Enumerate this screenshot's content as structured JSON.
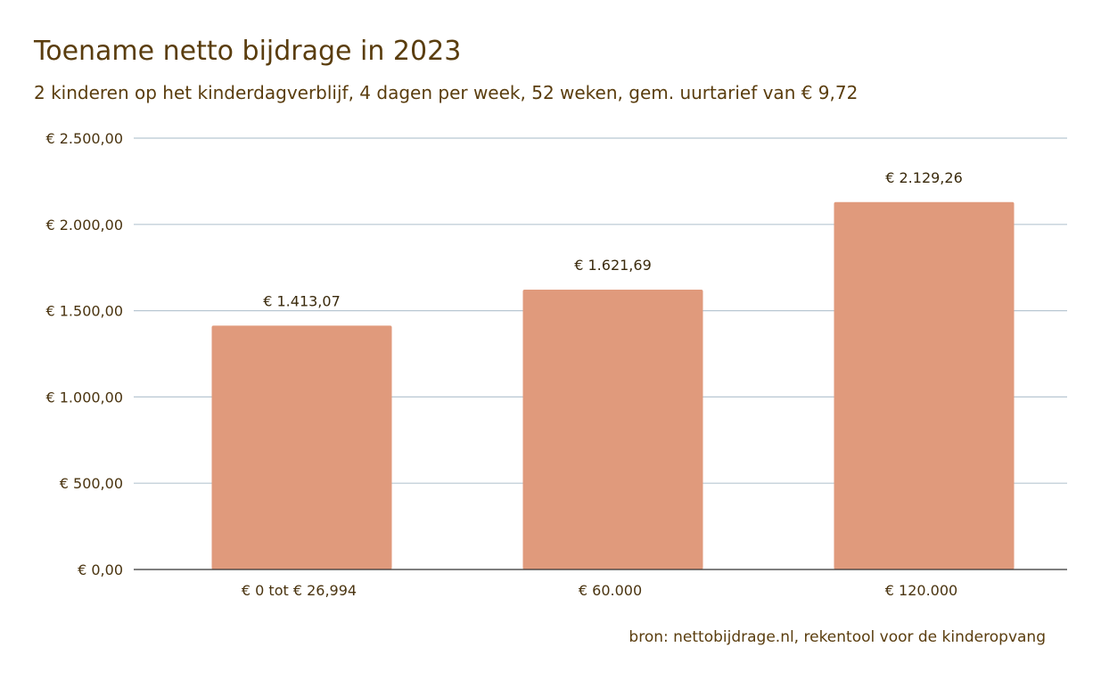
{
  "header": {
    "title": "Toename netto bijdrage in 2023",
    "subtitle": "2 kinderen op het kinderdagverblijf, 4 dagen per week, 52 weken, gem. uurtarief van € 9,72"
  },
  "footer": {
    "source": "bron: nettobijdrage.nl, rekentool voor de kinderopvang"
  },
  "colors": {
    "bar": "#e09a7c",
    "grid": "#b8c7d2",
    "axis": "#333333",
    "text": "#5a3d0e"
  },
  "chart_data": {
    "type": "bar",
    "title": "Toename netto bijdrage in 2023",
    "subtitle": "2 kinderen op het kinderdagverblijf, 4 dagen per week, 52 weken, gem. uurtarief van € 9,72",
    "categories": [
      "€ 0  tot € 26,994",
      "€ 60.000",
      "€ 120.000"
    ],
    "values": [
      1413.07,
      1621.69,
      2129.26
    ],
    "data_labels": [
      "€ 1.413,07",
      "€ 1.621,69",
      "€ 2.129,26"
    ],
    "y_ticks": [
      {
        "value": 0,
        "label": "€ 0,00"
      },
      {
        "value": 500,
        "label": "€ 500,00"
      },
      {
        "value": 1000,
        "label": "€ 1.000,00"
      },
      {
        "value": 1500,
        "label": "€ 1.500,00"
      },
      {
        "value": 2000,
        "label": "€ 2.000,00"
      },
      {
        "value": 2500,
        "label": "€ 2.500,00"
      }
    ],
    "ylim": [
      0,
      2500
    ],
    "grid": true,
    "legend": "none"
  }
}
